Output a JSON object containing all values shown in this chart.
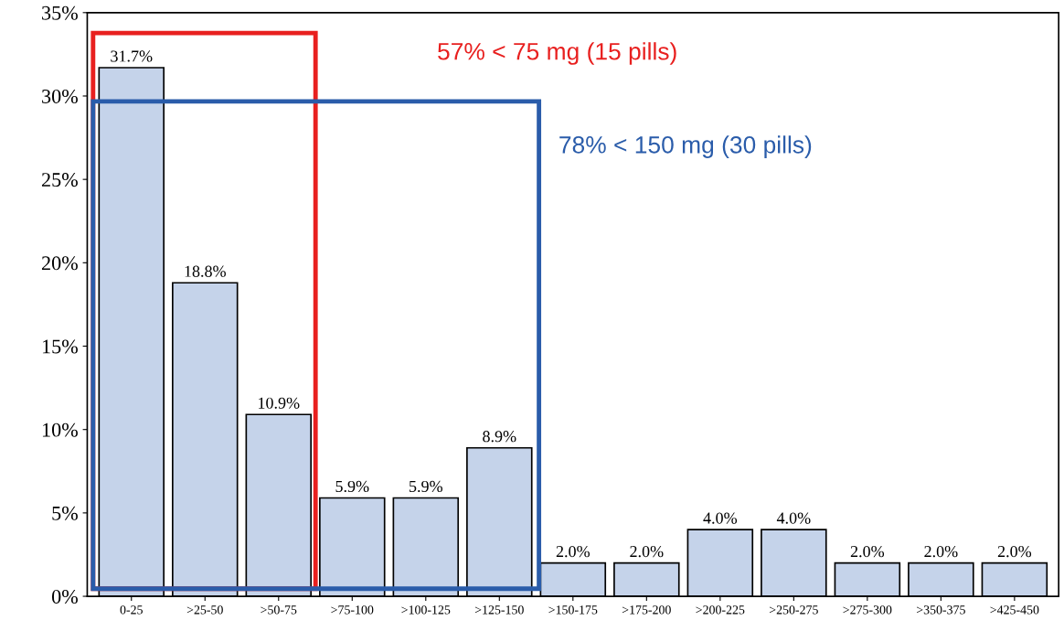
{
  "chart_data": {
    "type": "bar",
    "categories": [
      "0-25",
      ">25-50",
      ">50-75",
      ">75-100",
      ">100-125",
      ">125-150",
      ">150-175",
      ">175-200",
      ">200-225",
      ">250-275",
      ">275-300",
      ">350-375",
      ">425-450"
    ],
    "values": [
      31.7,
      18.8,
      10.9,
      5.9,
      5.9,
      8.9,
      2.0,
      2.0,
      4.0,
      4.0,
      2.0,
      2.0,
      2.0
    ],
    "value_labels": [
      "31.7%",
      "18.8%",
      "10.9%",
      "5.9%",
      "5.9%",
      "8.9%",
      "2.0%",
      "2.0%",
      "4.0%",
      "4.0%",
      "2.0%",
      "2.0%",
      "2.0%"
    ],
    "color": "#c5d3ea",
    "ylim": [
      0,
      35
    ],
    "yticks": [
      {
        "value": 0,
        "label": "0%"
      },
      {
        "value": 5,
        "label": "5%"
      },
      {
        "value": 10,
        "label": "10%"
      },
      {
        "value": 15,
        "label": "15%"
      },
      {
        "value": 20,
        "label": "20%"
      },
      {
        "value": 25,
        "label": "25%"
      },
      {
        "value": 30,
        "label": "30%"
      },
      {
        "value": 35,
        "label": "35%"
      }
    ],
    "annotations": [
      "57% < 75 mg (15 pills)",
      "78% < 150 mg (30 pills)"
    ],
    "grid": false,
    "legend": false
  }
}
